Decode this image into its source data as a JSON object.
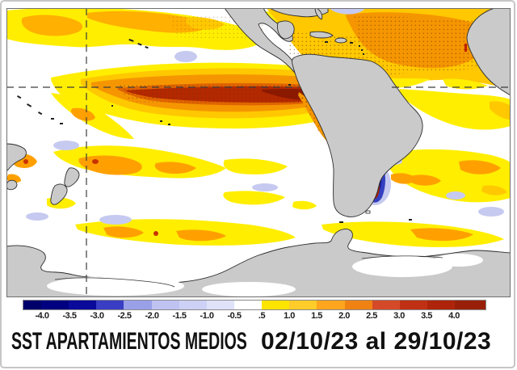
{
  "caption": {
    "title": "SST APARTAMIENTOS MEDIOS",
    "date_range": "02/10/23 al 29/10/23"
  },
  "colorbar": {
    "tick_labels": [
      "-4.0",
      "-3.5",
      "-3.0",
      "-2.5",
      "-2.0",
      "-1.5",
      "-1.0",
      "-0.5",
      ".5",
      "1.0",
      "1.5",
      "2.0",
      "2.5",
      "3.0",
      "3.5",
      "4.0"
    ],
    "segment_colors": [
      "#00006b",
      "#000080",
      "#0a0a9a",
      "#3a3ec4",
      "#9aa0e8",
      "#bfc3f2",
      "#cdd1f5",
      "#dfe2f8",
      "#ffffff",
      "#ffe400",
      "#ffcc2a",
      "#ffa51e",
      "#f08214",
      "#d44a28",
      "#c03014",
      "#ae240a",
      "#982009"
    ]
  },
  "map": {
    "ocean_color": "#ffffff",
    "land_color": "#cacaca",
    "coast_outline_color": "#2b2b2b",
    "grid_dash_color": "#3c3c3c",
    "frame_color": "#6f6f6f",
    "anomaly_palette": {
      "warm_0_5": "#ffee00",
      "warm_1": "#ffc800",
      "warm_1_5": "#ffa000",
      "warm_2": "#f59600",
      "warm_2_5": "#e06400",
      "hot_3": "#b42800",
      "hot_4": "#8c1800",
      "cold_0_5": "#c6caf0",
      "cold_2_5": "#3440c0",
      "cold_3_5": "#181f96"
    }
  }
}
